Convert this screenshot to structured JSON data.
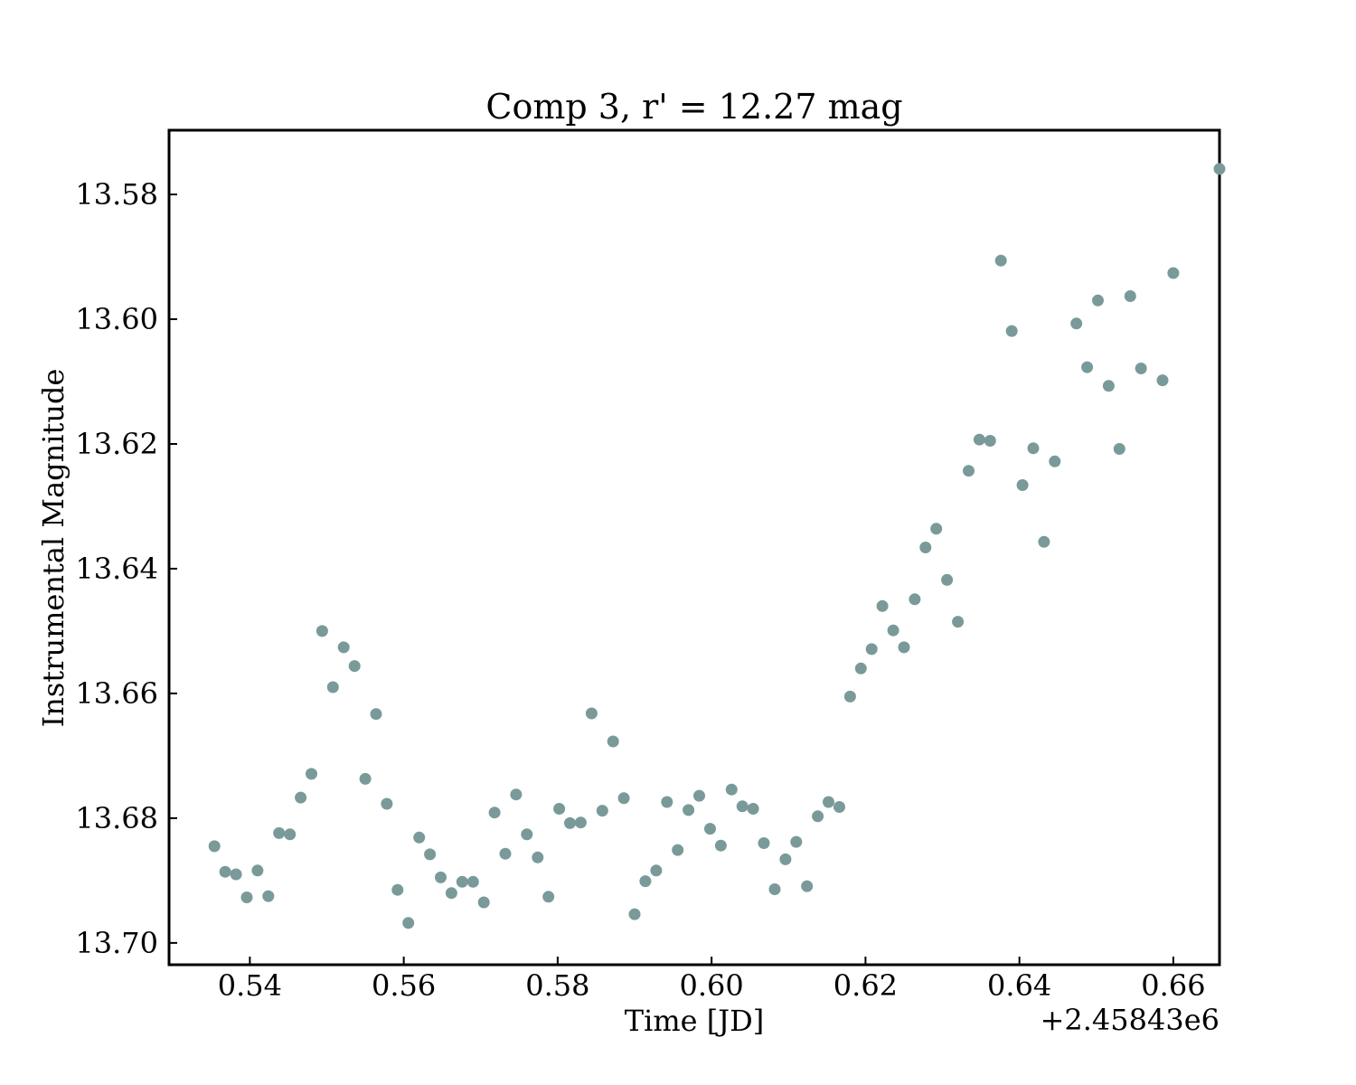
{
  "chart_data": {
    "type": "scatter",
    "title": "Comp 3, r' = 12.27 mag",
    "xlabel": "Time [JD]",
    "ylabel": "Instrumental Magnitude",
    "x_offset_label": "+2.45843e6",
    "x_offset": 2458430,
    "xlim": [
      0.5295,
      0.666
    ],
    "ylim": [
      13.7035,
      13.5697
    ],
    "y_inverted": true,
    "x_ticks": [
      0.54,
      0.56,
      0.58,
      0.6,
      0.62,
      0.64,
      0.66
    ],
    "x_tick_labels": [
      "0.54",
      "0.56",
      "0.58",
      "0.60",
      "0.62",
      "0.64",
      "0.66"
    ],
    "y_ticks": [
      13.58,
      13.6,
      13.62,
      13.64,
      13.66,
      13.68,
      13.7
    ],
    "y_tick_labels": [
      "13.58",
      "13.60",
      "13.62",
      "13.64",
      "13.66",
      "13.68",
      "13.70"
    ],
    "grid": false,
    "marker_color": "#7a9a9a",
    "series": [
      {
        "points": [
          [
            0.5354,
            13.6845
          ],
          [
            0.5368,
            13.6886
          ],
          [
            0.5382,
            13.689
          ],
          [
            0.5396,
            13.6927
          ],
          [
            0.541,
            13.6884
          ],
          [
            0.5424,
            13.6925
          ],
          [
            0.5438,
            13.6824
          ],
          [
            0.5452,
            13.6826
          ],
          [
            0.5466,
            13.6767
          ],
          [
            0.548,
            13.6729
          ],
          [
            0.5494,
            13.65
          ],
          [
            0.5508,
            13.659
          ],
          [
            0.5522,
            13.6526
          ],
          [
            0.5536,
            13.6556
          ],
          [
            0.555,
            13.6737
          ],
          [
            0.5564,
            13.6633
          ],
          [
            0.5578,
            13.6777
          ],
          [
            0.5592,
            13.6915
          ],
          [
            0.5606,
            13.6968
          ],
          [
            0.562,
            13.6831
          ],
          [
            0.5634,
            13.6858
          ],
          [
            0.5648,
            13.6895
          ],
          [
            0.5662,
            13.692
          ],
          [
            0.5676,
            13.6902
          ],
          [
            0.569,
            13.6902
          ],
          [
            0.5704,
            13.6935
          ],
          [
            0.5718,
            13.6791
          ],
          [
            0.5732,
            13.6857
          ],
          [
            0.5746,
            13.6762
          ],
          [
            0.576,
            13.6826
          ],
          [
            0.5774,
            13.6863
          ],
          [
            0.5788,
            13.6926
          ],
          [
            0.5802,
            13.6785
          ],
          [
            0.5816,
            13.6808
          ],
          [
            0.583,
            13.6807
          ],
          [
            0.5844,
            13.6632
          ],
          [
            0.5858,
            13.6788
          ],
          [
            0.5872,
            13.6677
          ],
          [
            0.5886,
            13.6768
          ],
          [
            0.59,
            13.6954
          ],
          [
            0.5914,
            13.6901
          ],
          [
            0.5928,
            13.6884
          ],
          [
            0.5942,
            13.6774
          ],
          [
            0.5956,
            13.6851
          ],
          [
            0.597,
            13.6787
          ],
          [
            0.5984,
            13.6764
          ],
          [
            0.5998,
            13.6817
          ],
          [
            0.6012,
            13.6844
          ],
          [
            0.6026,
            13.6754
          ],
          [
            0.604,
            13.6781
          ],
          [
            0.6054,
            13.6785
          ],
          [
            0.6068,
            13.684
          ],
          [
            0.6082,
            13.6914
          ],
          [
            0.6096,
            13.6866
          ],
          [
            0.611,
            13.6838
          ],
          [
            0.6124,
            13.6909
          ],
          [
            0.6138,
            13.6797
          ],
          [
            0.6152,
            13.6774
          ],
          [
            0.6166,
            13.6782
          ],
          [
            0.618,
            13.6605
          ],
          [
            0.6194,
            13.656
          ],
          [
            0.6208,
            13.6529
          ],
          [
            0.6222,
            13.646
          ],
          [
            0.6236,
            13.6499
          ],
          [
            0.625,
            13.6526
          ],
          [
            0.6264,
            13.6449
          ],
          [
            0.6278,
            13.6366
          ],
          [
            0.6292,
            13.6336
          ],
          [
            0.6306,
            13.6418
          ],
          [
            0.632,
            13.6485
          ],
          [
            0.6334,
            13.6243
          ],
          [
            0.6348,
            13.6193
          ],
          [
            0.6362,
            13.6195
          ],
          [
            0.6376,
            13.5906
          ],
          [
            0.639,
            13.6019
          ],
          [
            0.6404,
            13.6266
          ],
          [
            0.6418,
            13.6207
          ],
          [
            0.6432,
            13.6357
          ],
          [
            0.6446,
            13.6228
          ],
          [
            0.666,
            13.5759
          ],
          [
            0.6474,
            13.6007
          ],
          [
            0.6488,
            13.6077
          ],
          [
            0.6502,
            13.597
          ],
          [
            0.6516,
            13.6107
          ],
          [
            0.653,
            13.6208
          ],
          [
            0.6544,
            13.5963
          ],
          [
            0.6558,
            13.6079
          ],
          [
            0.6586,
            13.6098
          ],
          [
            0.66,
            13.5926
          ]
        ]
      }
    ]
  }
}
